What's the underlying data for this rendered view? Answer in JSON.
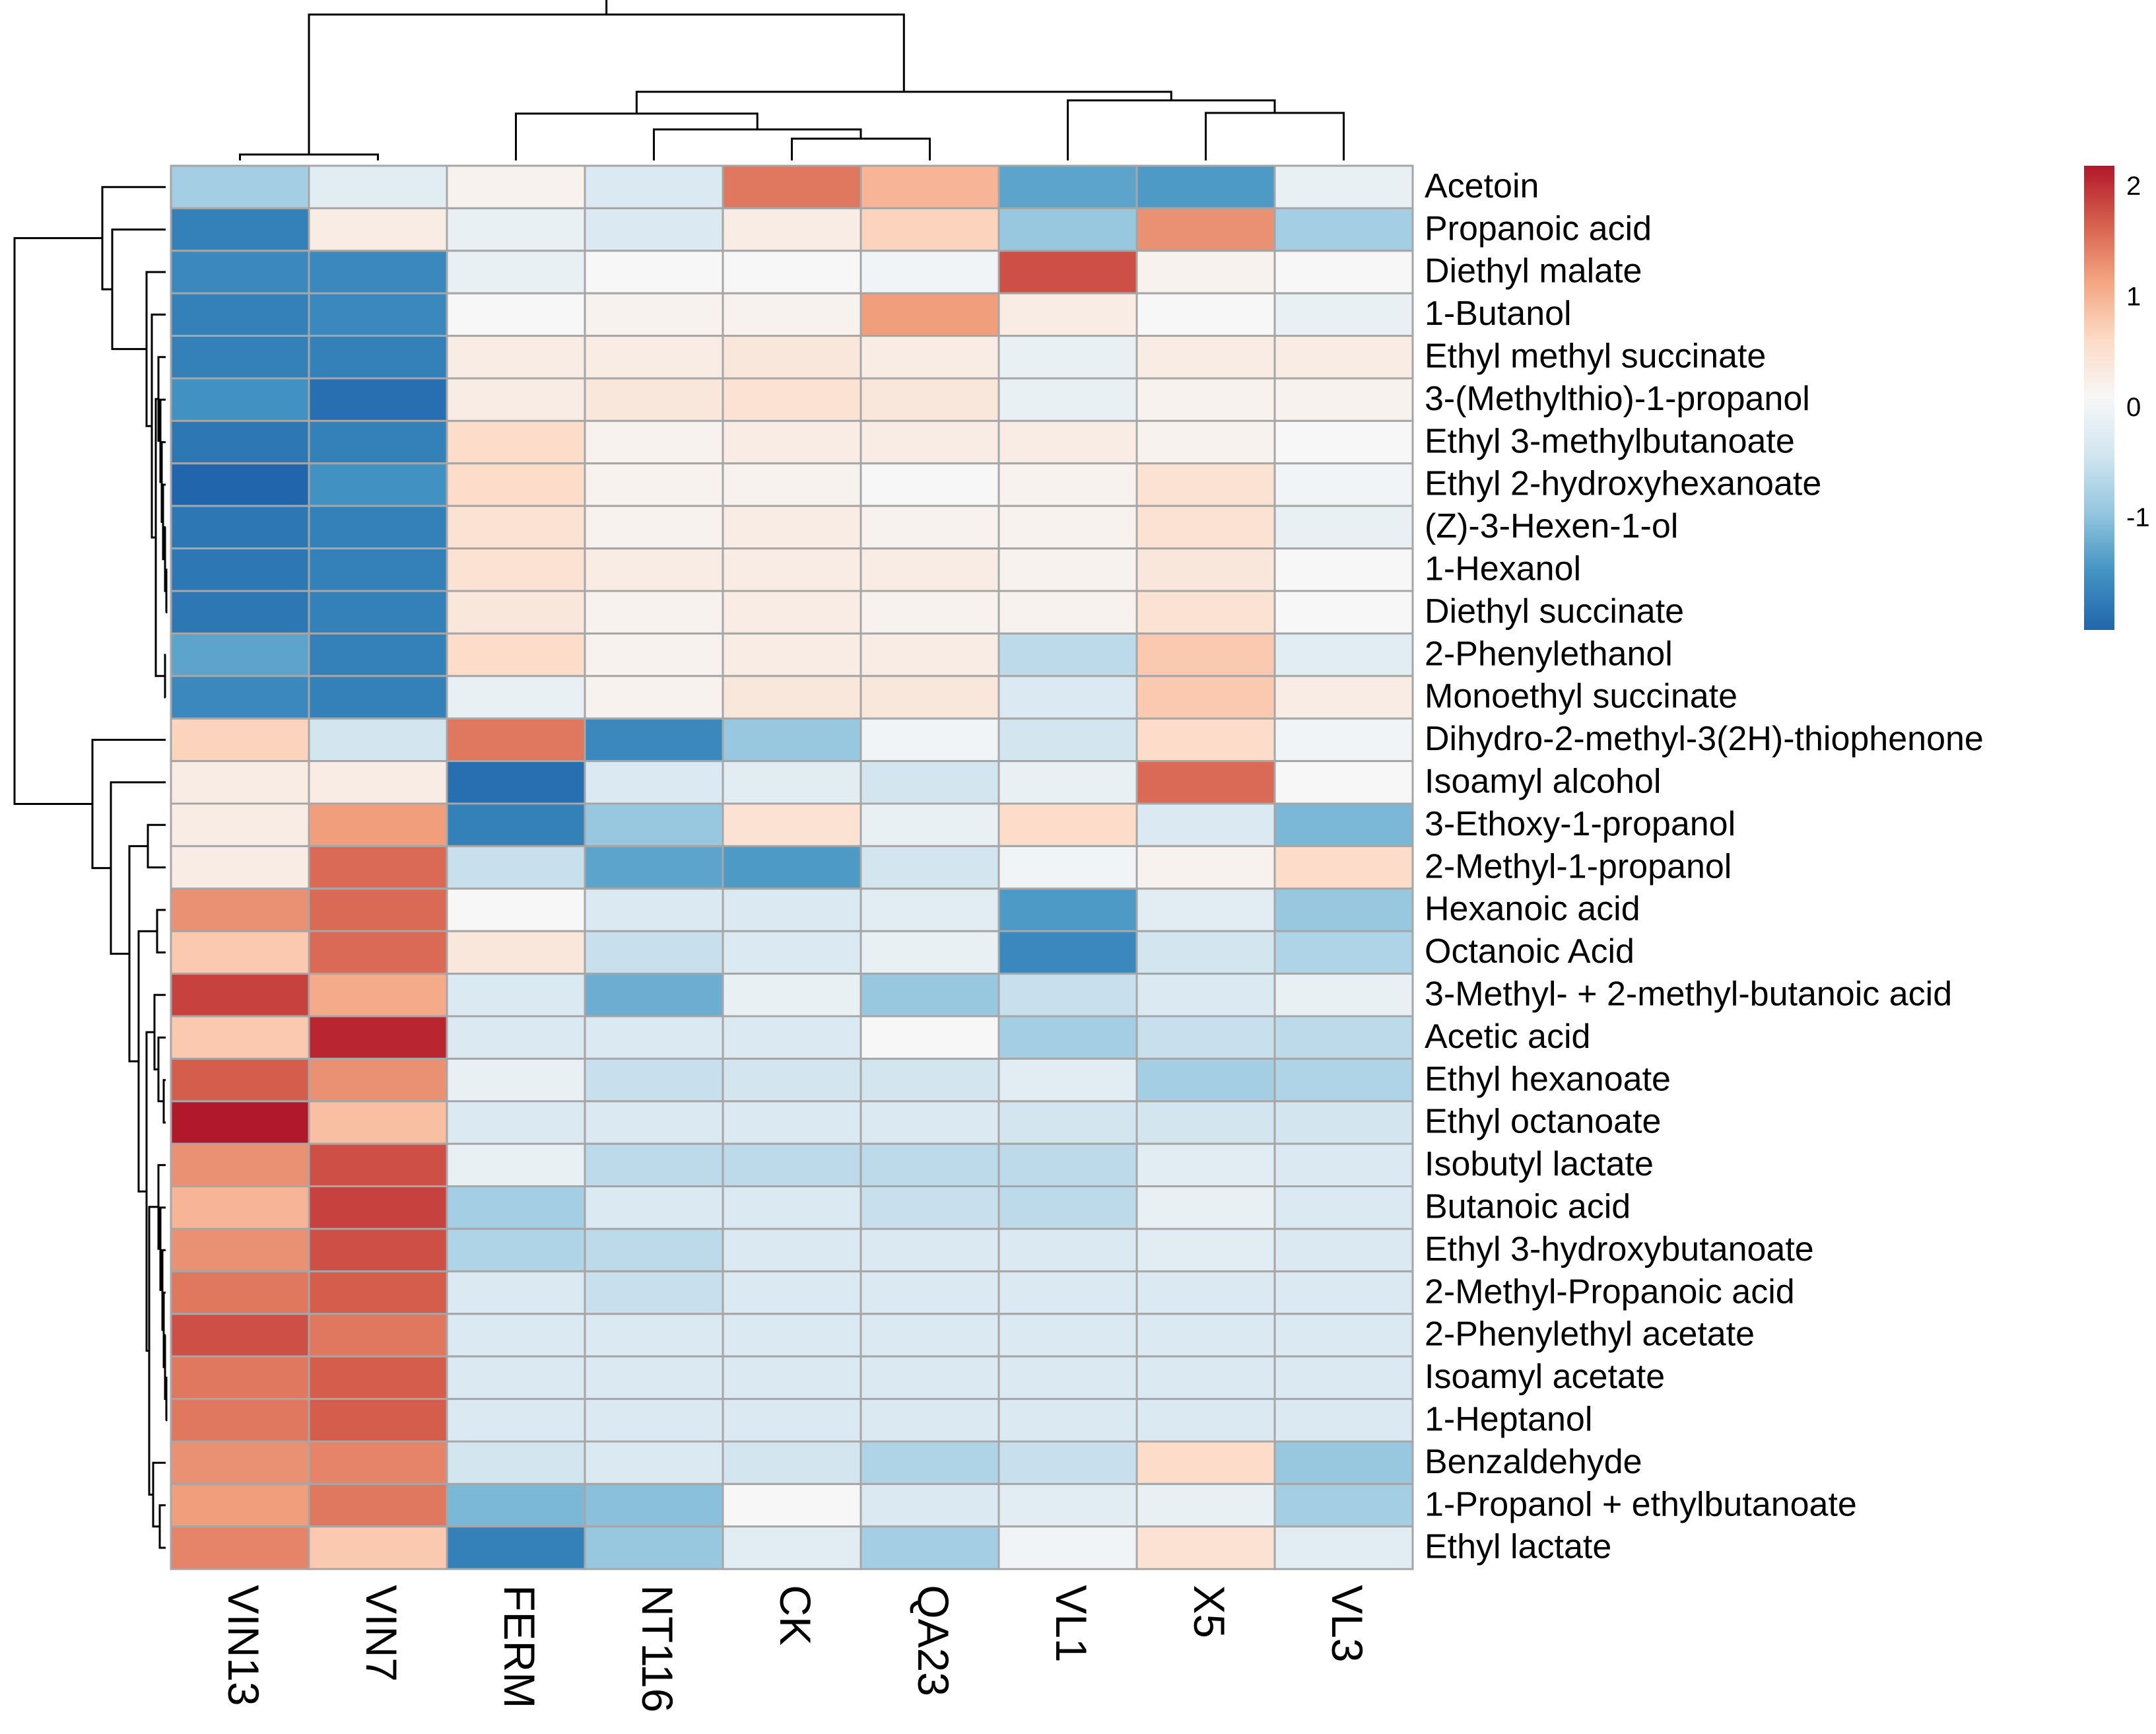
{
  "chart_data": {
    "type": "heatmap",
    "columns": [
      "VIN13",
      "VIN7",
      "FERM",
      "NT116",
      "CK",
      "QA23",
      "VL1",
      "X5",
      "VL3"
    ],
    "rows": [
      "Acetoin",
      "Propanoic acid",
      "Diethyl malate",
      "1-Butanol",
      "Ethyl methyl succinate",
      "3-(Methylthio)-1-propanol",
      "Ethyl 3-methylbutanoate",
      "Ethyl 2-hydroxyhexanoate",
      "(Z)-3-Hexen-1-ol",
      "1-Hexanol",
      "Diethyl succinate",
      "2-Phenylethanol",
      "Monoethyl succinate",
      "Dihydro-2-methyl-3(2H)-thiophenone",
      "Isoamyl alcohol",
      "3-Ethoxy-1-propanol",
      "2-Methyl-1-propanol",
      "Hexanoic acid",
      "Octanoic Acid",
      "3-Methyl- + 2-methyl-butanoic acid",
      "Acetic acid",
      "Ethyl hexanoate",
      "Ethyl octanoate",
      "Isobutyl lactate",
      "Butanoic acid",
      "Ethyl 3-hydroxybutanoate",
      "2-Methyl-Propanoic acid",
      "2-Phenylethyl acetate",
      "Isoamyl acetate",
      "1-Heptanol",
      "Benzaldehyde",
      "1-Propanol + ethylbutanoate",
      "Ethyl lactate"
    ],
    "values": [
      [
        -0.8,
        -0.2,
        0.2,
        -0.3,
        1.5,
        1.0,
        -1.3,
        -1.4,
        -0.1
      ],
      [
        -1.7,
        0.3,
        -0.1,
        -0.3,
        0.3,
        0.7,
        -0.9,
        1.3,
        -0.8
      ],
      [
        -1.6,
        -1.6,
        -0.1,
        0.1,
        0.1,
        0.0,
        1.8,
        0.2,
        0.1
      ],
      [
        -1.7,
        -1.6,
        0.1,
        0.2,
        0.2,
        1.2,
        0.3,
        0.1,
        -0.1
      ],
      [
        -1.7,
        -1.7,
        0.3,
        0.3,
        0.4,
        0.3,
        -0.1,
        0.3,
        0.3
      ],
      [
        -1.5,
        -1.9,
        0.3,
        0.4,
        0.5,
        0.4,
        -0.1,
        0.2,
        0.2
      ],
      [
        -1.8,
        -1.7,
        0.6,
        0.2,
        0.3,
        0.3,
        0.3,
        0.2,
        0.1
      ],
      [
        -2.0,
        -1.5,
        0.6,
        0.2,
        0.2,
        0.1,
        0.2,
        0.5,
        0.0
      ],
      [
        -1.8,
        -1.7,
        0.5,
        0.2,
        0.3,
        0.2,
        0.2,
        0.5,
        -0.1
      ],
      [
        -1.8,
        -1.7,
        0.5,
        0.3,
        0.3,
        0.3,
        0.2,
        0.4,
        0.1
      ],
      [
        -1.8,
        -1.7,
        0.4,
        0.2,
        0.3,
        0.2,
        0.2,
        0.5,
        0.1
      ],
      [
        -1.3,
        -1.7,
        0.6,
        0.2,
        0.3,
        0.3,
        -0.6,
        0.8,
        -0.2
      ],
      [
        -1.6,
        -1.7,
        -0.1,
        0.2,
        0.4,
        0.4,
        -0.3,
        0.8,
        0.3
      ],
      [
        0.7,
        -0.4,
        1.5,
        -1.6,
        -0.9,
        0.0,
        -0.4,
        0.6,
        0.0
      ],
      [
        0.3,
        0.3,
        -1.9,
        -0.3,
        -0.2,
        -0.4,
        -0.1,
        1.6,
        0.1
      ],
      [
        0.3,
        1.2,
        -1.7,
        -0.9,
        0.5,
        -0.1,
        0.6,
        -0.3,
        -1.1
      ],
      [
        0.3,
        1.6,
        -0.5,
        -1.3,
        -1.4,
        -0.4,
        0.0,
        0.2,
        0.6
      ],
      [
        1.3,
        1.6,
        0.1,
        -0.3,
        -0.3,
        -0.2,
        -1.4,
        -0.2,
        -0.9
      ],
      [
        0.8,
        1.6,
        0.4,
        -0.5,
        -0.3,
        -0.1,
        -1.6,
        -0.4,
        -0.7
      ],
      [
        1.9,
        1.1,
        -0.3,
        -1.2,
        -0.1,
        -0.9,
        -0.5,
        -0.3,
        -0.1
      ],
      [
        0.8,
        2.1,
        -0.3,
        -0.3,
        -0.3,
        0.1,
        -0.8,
        -0.5,
        -0.6
      ],
      [
        1.7,
        1.3,
        -0.1,
        -0.5,
        -0.4,
        -0.4,
        -0.2,
        -0.8,
        -0.7
      ],
      [
        2.2,
        0.9,
        -0.3,
        -0.3,
        -0.3,
        -0.3,
        -0.4,
        -0.4,
        -0.4
      ],
      [
        1.3,
        1.8,
        -0.1,
        -0.6,
        -0.6,
        -0.6,
        -0.6,
        -0.2,
        -0.3
      ],
      [
        1.0,
        1.9,
        -0.8,
        -0.3,
        -0.3,
        -0.5,
        -0.6,
        -0.1,
        -0.3
      ],
      [
        1.3,
        1.8,
        -0.7,
        -0.6,
        -0.3,
        -0.3,
        -0.3,
        -0.2,
        -0.3
      ],
      [
        1.5,
        1.7,
        -0.3,
        -0.5,
        -0.3,
        -0.3,
        -0.3,
        -0.3,
        -0.3
      ],
      [
        1.8,
        1.5,
        -0.3,
        -0.3,
        -0.3,
        -0.3,
        -0.3,
        -0.3,
        -0.3
      ],
      [
        1.5,
        1.7,
        -0.3,
        -0.3,
        -0.3,
        -0.3,
        -0.3,
        -0.3,
        -0.3
      ],
      [
        1.5,
        1.7,
        -0.3,
        -0.3,
        -0.3,
        -0.3,
        -0.3,
        -0.3,
        -0.3
      ],
      [
        1.3,
        1.4,
        -0.4,
        -0.3,
        -0.4,
        -0.7,
        -0.5,
        0.6,
        -0.9
      ],
      [
        1.2,
        1.5,
        -1.1,
        -1.0,
        0.1,
        -0.3,
        -0.2,
        -0.1,
        -0.8
      ],
      [
        1.4,
        0.8,
        -1.7,
        -0.9,
        -0.2,
        -0.8,
        0.0,
        0.5,
        -0.2
      ]
    ],
    "value_range": [
      -2.0,
      2.2
    ],
    "colorbar_ticks": [
      2,
      1,
      0,
      -1
    ],
    "colorbar_tick_labels": [
      "2",
      "1",
      "0",
      "-1"
    ],
    "colormap": [
      "#2166ac",
      "#4393c3",
      "#92c5de",
      "#d1e5f0",
      "#f7f7f7",
      "#fddbc7",
      "#f4a582",
      "#d6604d",
      "#b2182b"
    ],
    "legend_position": "top-right",
    "row_dendrogram": true,
    "column_dendrogram": true,
    "title": "",
    "xlabel": "",
    "ylabel": ""
  }
}
